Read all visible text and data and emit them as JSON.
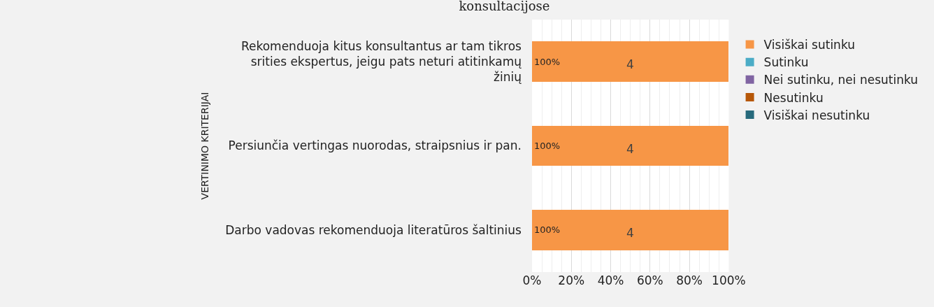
{
  "chart_data": {
    "type": "bar",
    "orientation": "horizontal",
    "stacked": true,
    "title": "konsultacijose",
    "ylabel": "VERTINIMO KRITERIJAI",
    "categories": [
      "Rekomenduoja kitus konsultantus ar tam tikros srities ekspertus, jeigu pats neturi atitinkamų žinių",
      "Persiunčia vertingas nuorodas, straipsnius ir pan.",
      "Darbo vadovas rekomenduoja literatūros šaltinius"
    ],
    "series": [
      {
        "name": "Visiškai sutinku",
        "color": "#f79646",
        "values": [
          100,
          100,
          100
        ],
        "value_labels": [
          "100%",
          "100%",
          "100%"
        ]
      },
      {
        "name": "Sutinku",
        "color": "#4bacc6",
        "values": [
          0,
          0,
          0
        ]
      },
      {
        "name": "Nei sutinku, nei nesutinku",
        "color": "#8064a2",
        "values": [
          0,
          0,
          0
        ]
      },
      {
        "name": "Nesutinku",
        "color": "#b65708",
        "values": [
          0,
          0,
          0
        ]
      },
      {
        "name": "Visiškai nesutinku",
        "color": "#276a7c",
        "values": [
          0,
          0,
          0
        ]
      }
    ],
    "annotations": [
      "4",
      "4",
      "4"
    ],
    "xlim": [
      0,
      100
    ],
    "xticks": [
      {
        "value": 0,
        "label": "0%"
      },
      {
        "value": 20,
        "label": "20%"
      },
      {
        "value": 40,
        "label": "40%"
      },
      {
        "value": 60,
        "label": "60%"
      },
      {
        "value": 80,
        "label": "80%"
      },
      {
        "value": 100,
        "label": "100%"
      }
    ],
    "grid": "x",
    "legend": "right"
  }
}
